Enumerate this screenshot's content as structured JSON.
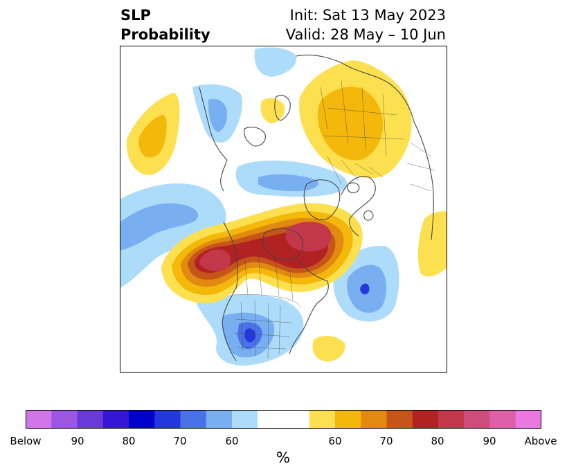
{
  "header": {
    "title_line1": "SLP",
    "title_line2": "Probability",
    "init_label": "Init: Sat 13 May 2023",
    "valid_label": "Valid: 28 May – 10 Jun"
  },
  "colors": {
    "below_scale": [
      "#d175e8",
      "#9b57e2",
      "#6a3ad9",
      "#3616d6",
      "#0000cd",
      "#2338dc",
      "#4a72e8",
      "#77aff1",
      "#addcfb"
    ],
    "neutral": "#ffffff",
    "above_scale": [
      "#fde04f",
      "#f3b80a",
      "#e08a10",
      "#c55518",
      "#b22222",
      "#c3374a",
      "#cc4c7b",
      "#dd5fa8",
      "#e979e0"
    ],
    "coastline": "#444444"
  },
  "colorbar": {
    "ticks": [
      "Below",
      "90",
      "80",
      "70",
      "60",
      "60",
      "70",
      "80",
      "90",
      "Above"
    ],
    "unit": "%"
  }
}
